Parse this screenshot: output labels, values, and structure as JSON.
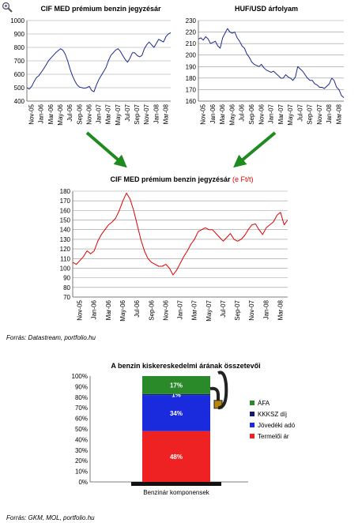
{
  "chart_data": [
    {
      "type": "line",
      "title": "CIF MED prémium benzin jegyzésár",
      "ylim": [
        400,
        1000
      ],
      "yticks": [
        400,
        500,
        600,
        700,
        800,
        900,
        1000
      ],
      "xticks": [
        "Nov-05",
        "Jan-06",
        "Mar-06",
        "May-06",
        "Jul-06",
        "Sep-06",
        "Nov-06",
        "Jan-07",
        "Mar-07",
        "May-07",
        "Jul-07",
        "Sep-07",
        "Nov-07",
        "Jan-08",
        "Mar-08"
      ],
      "series": [
        {
          "color": "#1c2a8c",
          "values": [
            500,
            490,
            510,
            545,
            575,
            590,
            615,
            640,
            670,
            700,
            720,
            740,
            760,
            775,
            790,
            780,
            750,
            700,
            640,
            590,
            550,
            520,
            505,
            500,
            495,
            500,
            510,
            480,
            470,
            520,
            560,
            590,
            620,
            650,
            700,
            740,
            760,
            780,
            790,
            770,
            740,
            710,
            690,
            720,
            760,
            760,
            740,
            730,
            740,
            790,
            820,
            840,
            820,
            800,
            830,
            860,
            850,
            840,
            880,
            900,
            910
          ]
        }
      ]
    },
    {
      "type": "line",
      "title": "HUF/USD árfolyam",
      "ylim": [
        160,
        230
      ],
      "yticks": [
        160,
        170,
        180,
        190,
        200,
        210,
        220,
        230
      ],
      "xticks": [
        "Nov-05",
        "Jan-06",
        "Mar-06",
        "May-06",
        "Jul-06",
        "Sep-06",
        "Nov-06",
        "Jan-07",
        "Mar-07",
        "May-07",
        "Jul-07",
        "Sep-07",
        "Nov-07",
        "Jan-08",
        "Mar-08"
      ],
      "series": [
        {
          "color": "#1c2a8c",
          "values": [
            214,
            215,
            213,
            216,
            214,
            210,
            211,
            212,
            208,
            206,
            215,
            219,
            223,
            220,
            219,
            220,
            215,
            212,
            208,
            206,
            201,
            198,
            194,
            192,
            191,
            190,
            192,
            189,
            187,
            186,
            185,
            186,
            184,
            182,
            180,
            180,
            183,
            181,
            180,
            178,
            181,
            190,
            188,
            186,
            183,
            180,
            178,
            178,
            175,
            174,
            172,
            172,
            171,
            173,
            175,
            180,
            178,
            172,
            170,
            165,
            163
          ]
        }
      ]
    },
    {
      "type": "line",
      "title": "CIF MED prémium benzin jegyzésár",
      "title_unit": "(e Ft/t)",
      "ylim": [
        70,
        180
      ],
      "yticks": [
        70,
        80,
        90,
        100,
        110,
        120,
        130,
        140,
        150,
        160,
        170,
        180
      ],
      "xticks": [
        "Nov-05",
        "Jan-06",
        "Mar-06",
        "May-06",
        "Jul-06",
        "Sep-06",
        "Nov-06",
        "Jan-07",
        "Mar-07",
        "May-07",
        "Jul-07",
        "Sep-07",
        "Nov-07",
        "Jan-08",
        "Mar-08"
      ],
      "series": [
        {
          "color": "#e00000",
          "values": [
            106,
            104,
            108,
            112,
            118,
            115,
            118,
            128,
            135,
            140,
            145,
            148,
            152,
            160,
            170,
            178,
            172,
            160,
            145,
            130,
            118,
            110,
            106,
            104,
            102,
            102,
            104,
            100,
            93,
            98,
            105,
            112,
            118,
            125,
            130,
            138,
            140,
            142,
            140,
            140,
            136,
            132,
            128,
            132,
            136,
            130,
            128,
            130,
            134,
            140,
            145,
            146,
            140,
            135,
            142,
            145,
            148,
            155,
            158,
            145,
            150
          ]
        }
      ]
    },
    {
      "type": "bar",
      "stacked": true,
      "title": "A benzin kiskereskedelmi árának összetevői",
      "categories": [
        "Benzinár komponensek"
      ],
      "yticks": [
        "0%",
        "10%",
        "20%",
        "30%",
        "40%",
        "50%",
        "60%",
        "70%",
        "80%",
        "90%",
        "100%"
      ],
      "ylim": [
        0,
        100
      ],
      "series": [
        {
          "name": "Termelői ár",
          "values": [
            48
          ],
          "label": "48%",
          "color": "#ee2222"
        },
        {
          "name": "Jövedéki adó",
          "values": [
            34
          ],
          "label": "34%",
          "color": "#1a2bdd"
        },
        {
          "name": "KKKSZ díj",
          "values": [
            1
          ],
          "label": "1%",
          "color": "#101c70"
        },
        {
          "name": "ÁFA",
          "values": [
            17
          ],
          "label": "17%",
          "color": "#2a8a2a"
        }
      ],
      "legend_order": [
        "ÁFA",
        "KKKSZ díj",
        "Jövedéki adó",
        "Termelői ár"
      ],
      "legend_position": "right"
    }
  ],
  "sources": {
    "top": "Forrás: Datastream, portfolio.hu",
    "bottom": "Forrás: GKM, MOL, portfolio.hu"
  },
  "icons": {
    "corner": "magnifier-icon",
    "arrow_color": "#1f8a1f"
  }
}
